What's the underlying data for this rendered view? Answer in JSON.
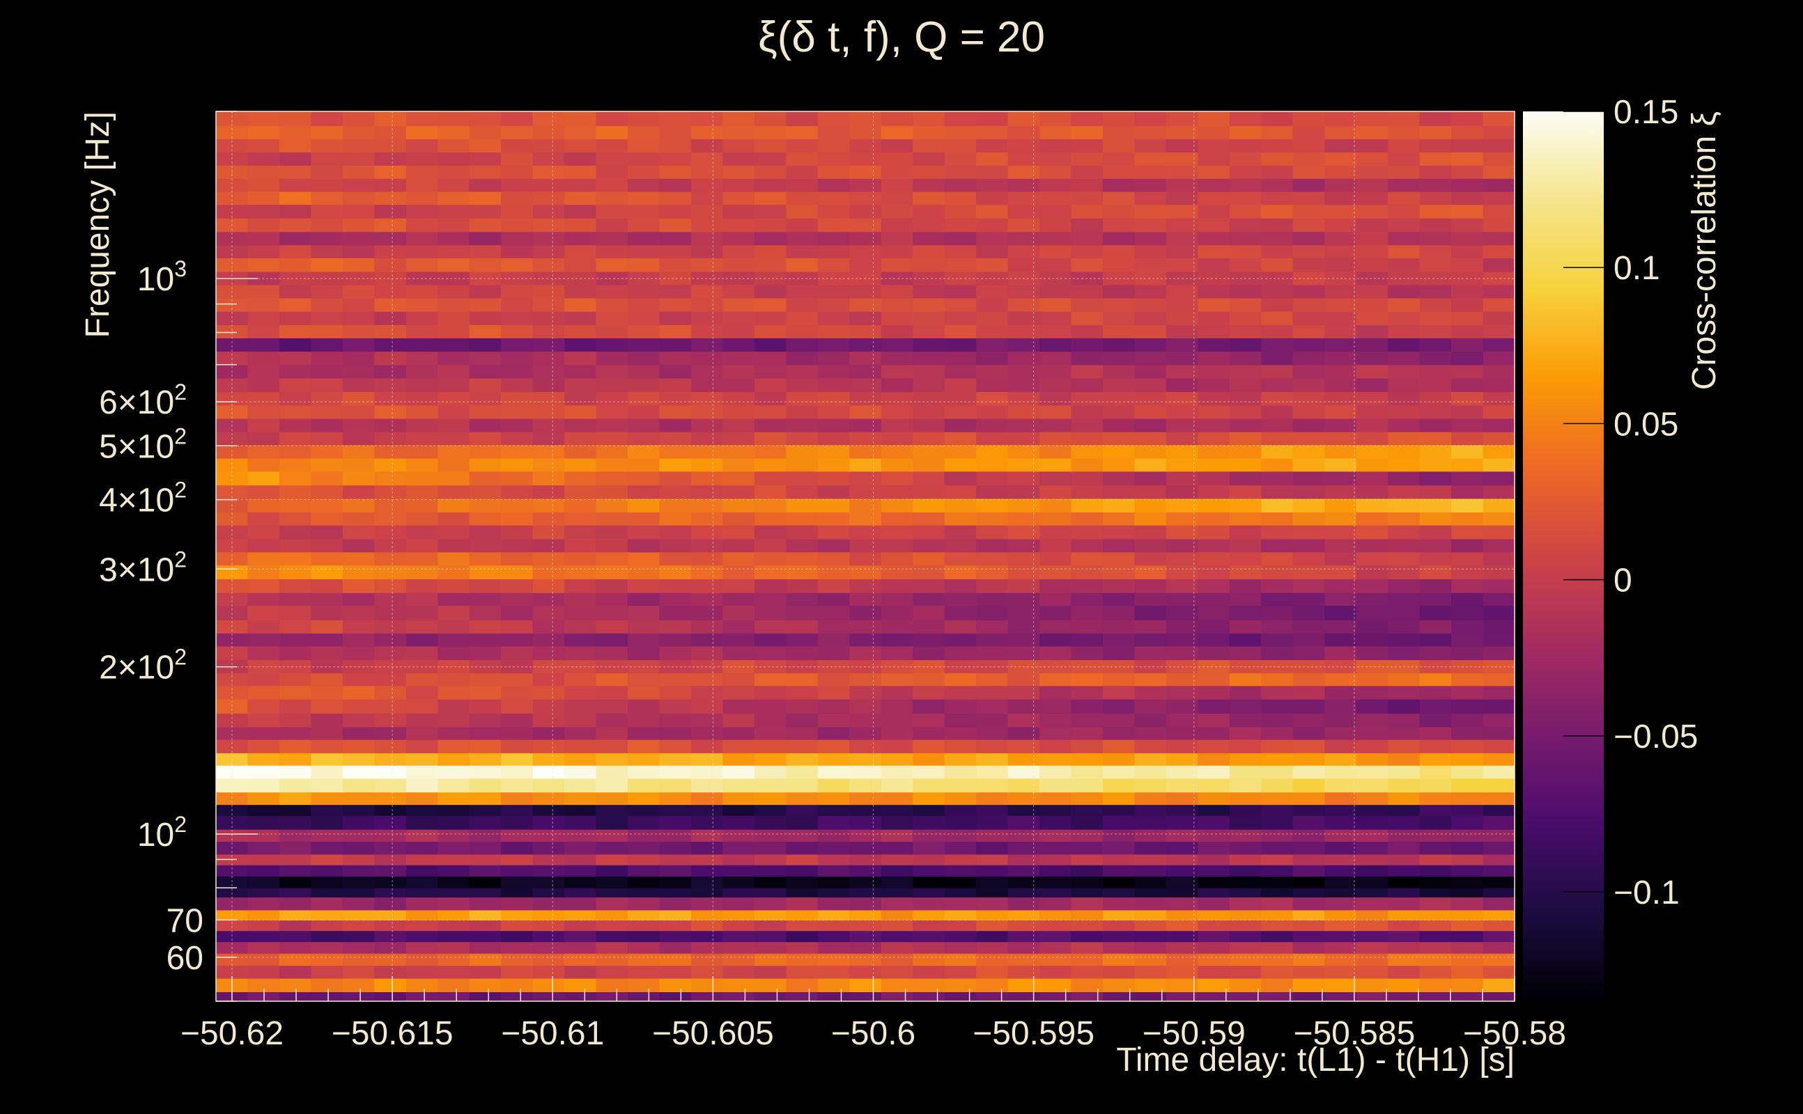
{
  "chart_data": {
    "type": "heatmap",
    "title": "ξ(δ t, f), Q = 20",
    "xlabel": "Time delay: t(L1) - t(H1) [s]",
    "ylabel": "Frequency [Hz]",
    "colorbar_label": "Cross-correlation ξ",
    "xlim": [
      -50.6205,
      -50.58
    ],
    "ylim": [
      50,
      2000
    ],
    "y_scale": "log",
    "grid": true,
    "colormap": "inferno",
    "colorbar_range": [
      -0.135,
      0.15
    ],
    "x_ticks": [
      {
        "value": -50.62,
        "label": "−50.62"
      },
      {
        "value": -50.615,
        "label": "−50.615"
      },
      {
        "value": -50.61,
        "label": "−50.61"
      },
      {
        "value": -50.605,
        "label": "−50.605"
      },
      {
        "value": -50.6,
        "label": "−50.6"
      },
      {
        "value": -50.595,
        "label": "−50.595"
      },
      {
        "value": -50.59,
        "label": "−50.59"
      },
      {
        "value": -50.585,
        "label": "−50.585"
      },
      {
        "value": -50.58,
        "label": "−50.58"
      }
    ],
    "y_ticks": [
      {
        "value": 60,
        "base": "60",
        "exp": ""
      },
      {
        "value": 70,
        "base": "70",
        "exp": ""
      },
      {
        "value": 100,
        "base": "10",
        "exp": "2"
      },
      {
        "value": 200,
        "base": "2×10",
        "exp": "2"
      },
      {
        "value": 300,
        "base": "3×10",
        "exp": "2"
      },
      {
        "value": 400,
        "base": "4×10",
        "exp": "2"
      },
      {
        "value": 500,
        "base": "5×10",
        "exp": "2"
      },
      {
        "value": 600,
        "base": "6×10",
        "exp": "2"
      },
      {
        "value": 1000,
        "base": "10",
        "exp": "3"
      }
    ],
    "colorbar_ticks": [
      {
        "value": 0.15,
        "label": "0.15"
      },
      {
        "value": 0.1,
        "label": "0.1"
      },
      {
        "value": 0.05,
        "label": "0.05"
      },
      {
        "value": 0,
        "label": "0"
      },
      {
        "value": -0.05,
        "label": "−0.05"
      },
      {
        "value": -0.1,
        "label": "−0.1"
      }
    ],
    "frequency_bands": [
      {
        "f_low": 50,
        "f_high": 52,
        "start": -0.06,
        "end": -0.05
      },
      {
        "f_low": 52,
        "f_high": 55,
        "start": 0.05,
        "end": 0.06
      },
      {
        "f_low": 55,
        "f_high": 58,
        "start": 0.0,
        "end": 0.02
      },
      {
        "f_low": 58,
        "f_high": 61,
        "start": 0.03,
        "end": 0.04
      },
      {
        "f_low": 61,
        "f_high": 64,
        "start": -0.02,
        "end": -0.01
      },
      {
        "f_low": 64,
        "f_high": 67,
        "start": -0.08,
        "end": -0.07
      },
      {
        "f_low": 67,
        "f_high": 70,
        "start": 0.0,
        "end": 0.02
      },
      {
        "f_low": 70,
        "f_high": 73,
        "start": 0.07,
        "end": 0.06
      },
      {
        "f_low": 73,
        "f_high": 77,
        "start": -0.03,
        "end": -0.02
      },
      {
        "f_low": 77,
        "f_high": 80,
        "start": -0.1,
        "end": -0.11
      },
      {
        "f_low": 80,
        "f_high": 84,
        "start": -0.12,
        "end": -0.13
      },
      {
        "f_low": 84,
        "f_high": 88,
        "start": -0.07,
        "end": -0.08
      },
      {
        "f_low": 88,
        "f_high": 92,
        "start": 0.0,
        "end": -0.01
      },
      {
        "f_low": 92,
        "f_high": 97,
        "start": -0.05,
        "end": -0.06
      },
      {
        "f_low": 97,
        "f_high": 102,
        "start": -0.02,
        "end": -0.03
      },
      {
        "f_low": 102,
        "f_high": 108,
        "start": -0.09,
        "end": -0.08
      },
      {
        "f_low": 108,
        "f_high": 113,
        "start": -0.11,
        "end": -0.09
      },
      {
        "f_low": 113,
        "f_high": 119,
        "start": 0.06,
        "end": 0.05
      },
      {
        "f_low": 119,
        "f_high": 126,
        "start": 0.13,
        "end": 0.1
      },
      {
        "f_low": 126,
        "f_high": 133,
        "start": 0.15,
        "end": 0.12
      },
      {
        "f_low": 133,
        "f_high": 140,
        "start": 0.08,
        "end": 0.06
      },
      {
        "f_low": 140,
        "f_high": 148,
        "start": 0.02,
        "end": 0.01
      },
      {
        "f_low": 148,
        "f_high": 156,
        "start": -0.02,
        "end": -0.03
      },
      {
        "f_low": 156,
        "f_high": 165,
        "start": 0.0,
        "end": -0.04
      },
      {
        "f_low": 165,
        "f_high": 175,
        "start": 0.02,
        "end": -0.06
      },
      {
        "f_low": 175,
        "f_high": 185,
        "start": 0.03,
        "end": -0.03
      },
      {
        "f_low": 185,
        "f_high": 195,
        "start": 0.01,
        "end": 0.04
      },
      {
        "f_low": 195,
        "f_high": 206,
        "start": 0.0,
        "end": 0.02
      },
      {
        "f_low": 206,
        "f_high": 218,
        "start": -0.01,
        "end": -0.04
      },
      {
        "f_low": 218,
        "f_high": 230,
        "start": -0.03,
        "end": -0.06
      },
      {
        "f_low": 230,
        "f_high": 243,
        "start": 0.01,
        "end": -0.05
      },
      {
        "f_low": 243,
        "f_high": 258,
        "start": 0.0,
        "end": -0.06
      },
      {
        "f_low": 258,
        "f_high": 272,
        "start": -0.01,
        "end": -0.05
      },
      {
        "f_low": 272,
        "f_high": 288,
        "start": 0.02,
        "end": -0.03
      },
      {
        "f_low": 288,
        "f_high": 305,
        "start": 0.06,
        "end": 0.0
      },
      {
        "f_low": 305,
        "f_high": 322,
        "start": 0.04,
        "end": 0.0
      },
      {
        "f_low": 322,
        "f_high": 340,
        "start": 0.0,
        "end": -0.02
      },
      {
        "f_low": 340,
        "f_high": 360,
        "start": 0.0,
        "end": 0.01
      },
      {
        "f_low": 360,
        "f_high": 380,
        "start": 0.02,
        "end": 0.05
      },
      {
        "f_low": 380,
        "f_high": 402,
        "start": 0.03,
        "end": 0.08
      },
      {
        "f_low": 402,
        "f_high": 425,
        "start": 0.02,
        "end": -0.01
      },
      {
        "f_low": 425,
        "f_high": 450,
        "start": 0.06,
        "end": -0.04
      },
      {
        "f_low": 450,
        "f_high": 475,
        "start": 0.05,
        "end": 0.07
      },
      {
        "f_low": 475,
        "f_high": 502,
        "start": 0.03,
        "end": 0.07
      },
      {
        "f_low": 502,
        "f_high": 530,
        "start": 0.0,
        "end": 0.02
      },
      {
        "f_low": 530,
        "f_high": 560,
        "start": -0.01,
        "end": -0.02
      },
      {
        "f_low": 560,
        "f_high": 592,
        "start": 0.02,
        "end": 0.0
      },
      {
        "f_low": 592,
        "f_high": 626,
        "start": 0.01,
        "end": 0.0
      },
      {
        "f_low": 626,
        "f_high": 662,
        "start": 0.0,
        "end": -0.02
      },
      {
        "f_low": 662,
        "f_high": 700,
        "start": -0.02,
        "end": -0.01
      },
      {
        "f_low": 700,
        "f_high": 740,
        "start": -0.01,
        "end": -0.04
      },
      {
        "f_low": 740,
        "f_high": 782,
        "start": -0.06,
        "end": -0.05
      },
      {
        "f_low": 782,
        "f_high": 826,
        "start": 0.02,
        "end": 0.0
      },
      {
        "f_low": 826,
        "f_high": 873,
        "start": 0.0,
        "end": 0.01
      },
      {
        "f_low": 873,
        "f_high": 923,
        "start": 0.02,
        "end": 0.01
      },
      {
        "f_low": 923,
        "f_high": 975,
        "start": 0.01,
        "end": -0.01
      },
      {
        "f_low": 975,
        "f_high": 1030,
        "start": 0.0,
        "end": 0.0
      },
      {
        "f_low": 1030,
        "f_high": 1090,
        "start": 0.03,
        "end": 0.0
      },
      {
        "f_low": 1090,
        "f_high": 1150,
        "start": 0.0,
        "end": 0.01
      },
      {
        "f_low": 1150,
        "f_high": 1215,
        "start": -0.02,
        "end": -0.01
      },
      {
        "f_low": 1215,
        "f_high": 1285,
        "start": 0.02,
        "end": 0.0
      },
      {
        "f_low": 1285,
        "f_high": 1360,
        "start": 0.0,
        "end": 0.02
      },
      {
        "f_low": 1360,
        "f_high": 1435,
        "start": 0.03,
        "end": 0.0
      },
      {
        "f_low": 1435,
        "f_high": 1515,
        "start": 0.01,
        "end": -0.02
      },
      {
        "f_low": 1515,
        "f_high": 1600,
        "start": 0.02,
        "end": 0.01
      },
      {
        "f_low": 1600,
        "f_high": 1690,
        "start": 0.0,
        "end": 0.02
      },
      {
        "f_low": 1690,
        "f_high": 1785,
        "start": 0.02,
        "end": 0.0
      },
      {
        "f_low": 1785,
        "f_high": 1885,
        "start": 0.03,
        "end": 0.02
      },
      {
        "f_low": 1885,
        "f_high": 2000,
        "start": 0.02,
        "end": 0.01
      }
    ]
  }
}
